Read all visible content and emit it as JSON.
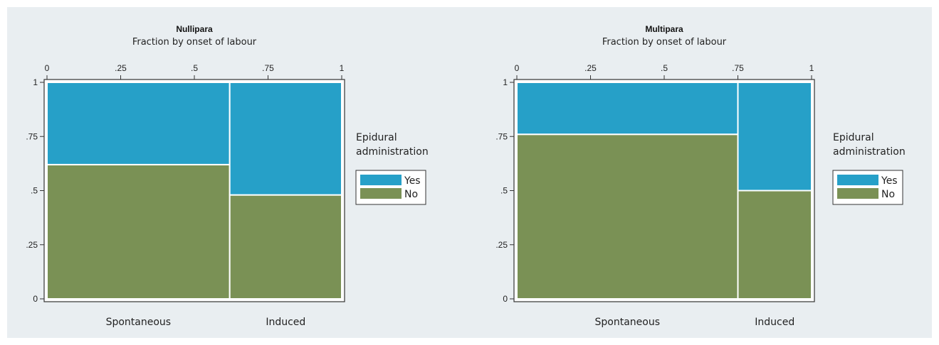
{
  "chart_data": [
    {
      "type": "bar",
      "title": "Nullipara",
      "xlabel": "Fraction by onset of labour",
      "x_ticks": [
        "0",
        ".25",
        ".5",
        ".75",
        "1"
      ],
      "y_ticks": [
        "0",
        ".25",
        ".5",
        ".75",
        "1"
      ],
      "xlim": [
        0,
        1
      ],
      "ylim": [
        0,
        1
      ],
      "categories": [
        "Spontaneous",
        "Induced"
      ],
      "category_widths": [
        0.62,
        0.38
      ],
      "series": [
        {
          "name": "No",
          "values": [
            0.62,
            0.48
          ]
        },
        {
          "name": "Yes",
          "values": [
            0.38,
            0.52
          ]
        }
      ],
      "legend_title": "Epidural administration",
      "legend_position": "right"
    },
    {
      "type": "bar",
      "title": "Multipara",
      "xlabel": "Fraction by onset of labour",
      "x_ticks": [
        "0",
        ".25",
        ".5",
        ".75",
        "1"
      ],
      "y_ticks": [
        "0",
        ".25",
        ".5",
        ".75",
        "1"
      ],
      "xlim": [
        0,
        1
      ],
      "ylim": [
        0,
        1
      ],
      "categories": [
        "Spontaneous",
        "Induced"
      ],
      "category_widths": [
        0.75,
        0.25
      ],
      "series": [
        {
          "name": "No",
          "values": [
            0.76,
            0.5
          ]
        },
        {
          "name": "Yes",
          "values": [
            0.24,
            0.5
          ]
        }
      ],
      "legend_title": "Epidural administration",
      "legend_position": "right"
    }
  ],
  "legend": {
    "title_line1": "Epidural",
    "title_line2": "administration",
    "items": [
      {
        "label": "Yes",
        "color": "#26a0c8"
      },
      {
        "label": "No",
        "color": "#7a9155"
      }
    ]
  },
  "colors": {
    "Yes": "#26a0c8",
    "No": "#7a9155",
    "plot_background": "#ffffff",
    "figure_background": "#e9eef1"
  }
}
